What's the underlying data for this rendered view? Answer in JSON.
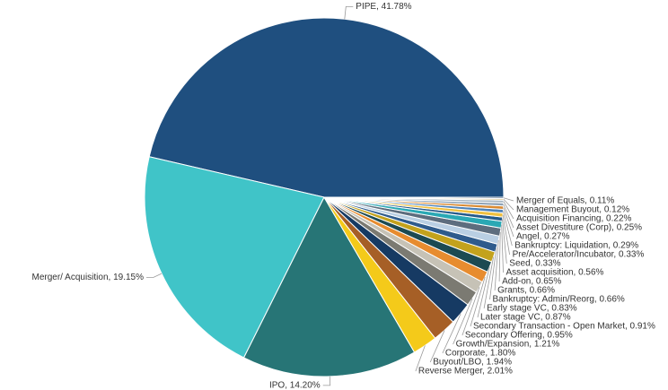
{
  "chart_data": {
    "type": "pie",
    "title": "",
    "slices": [
      {
        "label": "PIPE",
        "value": 41.78,
        "display": "41.78%",
        "color": "#1f4f7f"
      },
      {
        "label": "Merger/ Acquisition",
        "value": 19.15,
        "display": "19.15%",
        "color": "#40c4c8"
      },
      {
        "label": "IPO",
        "value": 14.2,
        "display": "14.20%",
        "color": "#277576"
      },
      {
        "label": "Reverse Merger",
        "value": 2.01,
        "display": "2.01%",
        "color": "#f4ca1a"
      },
      {
        "label": "Buyout/LBO",
        "value": 1.94,
        "display": "1.94%",
        "color": "#a65f26"
      },
      {
        "label": "Corporate",
        "value": 1.8,
        "display": "1.80%",
        "color": "#163a63"
      },
      {
        "label": "Growth/Expansion",
        "value": 1.21,
        "display": "1.21%",
        "color": "#7b7a72"
      },
      {
        "label": "Secondary Offering",
        "value": 0.95,
        "display": "0.95%",
        "color": "#c6c2b6"
      },
      {
        "label": "Secondary Transaction - Open Market",
        "value": 0.91,
        "display": "0.91%",
        "color": "#e78c2f"
      },
      {
        "label": "Later stage VC",
        "value": 0.87,
        "display": "0.87%",
        "color": "#1c4a52"
      },
      {
        "label": "Early stage VC",
        "value": 0.83,
        "display": "0.83%",
        "color": "#c3a21c"
      },
      {
        "label": "Bankruptcy: Admin/Reorg",
        "value": 0.66,
        "display": "0.66%",
        "color": "#2e5b8c"
      },
      {
        "label": "Grants",
        "value": 0.66,
        "display": "0.66%",
        "color": "#b9cfe3"
      },
      {
        "label": "Add-on",
        "value": 0.65,
        "display": "0.65%",
        "color": "#5d6d7e"
      },
      {
        "label": "Asset acquisition",
        "value": 0.56,
        "display": "0.56%",
        "color": "#2aa8b4"
      },
      {
        "label": "Seed",
        "value": 0.33,
        "display": "0.33%",
        "color": "#255a8a"
      },
      {
        "label": "Pre/Accelerator/Incubator",
        "value": 0.33,
        "display": "0.33%",
        "color": "#f0c040"
      },
      {
        "label": "Bankruptcy: Liquidation",
        "value": 0.29,
        "display": "0.29%",
        "color": "#4f83b8"
      },
      {
        "label": "Angel",
        "value": 0.27,
        "display": "0.27%",
        "color": "#d98a32"
      },
      {
        "label": "Asset Divestiture (Corp)",
        "value": 0.25,
        "display": "0.25%",
        "color": "#8fa2b5"
      },
      {
        "label": "Acquisition Financing",
        "value": 0.22,
        "display": "0.22%",
        "color": "#a7b6c2"
      },
      {
        "label": "Management Buyout",
        "value": 0.12,
        "display": "0.12%",
        "color": "#d9c48a"
      },
      {
        "label": "Merger of Equals",
        "value": 0.11,
        "display": "0.11%",
        "color": "#2c4c6c"
      }
    ]
  }
}
